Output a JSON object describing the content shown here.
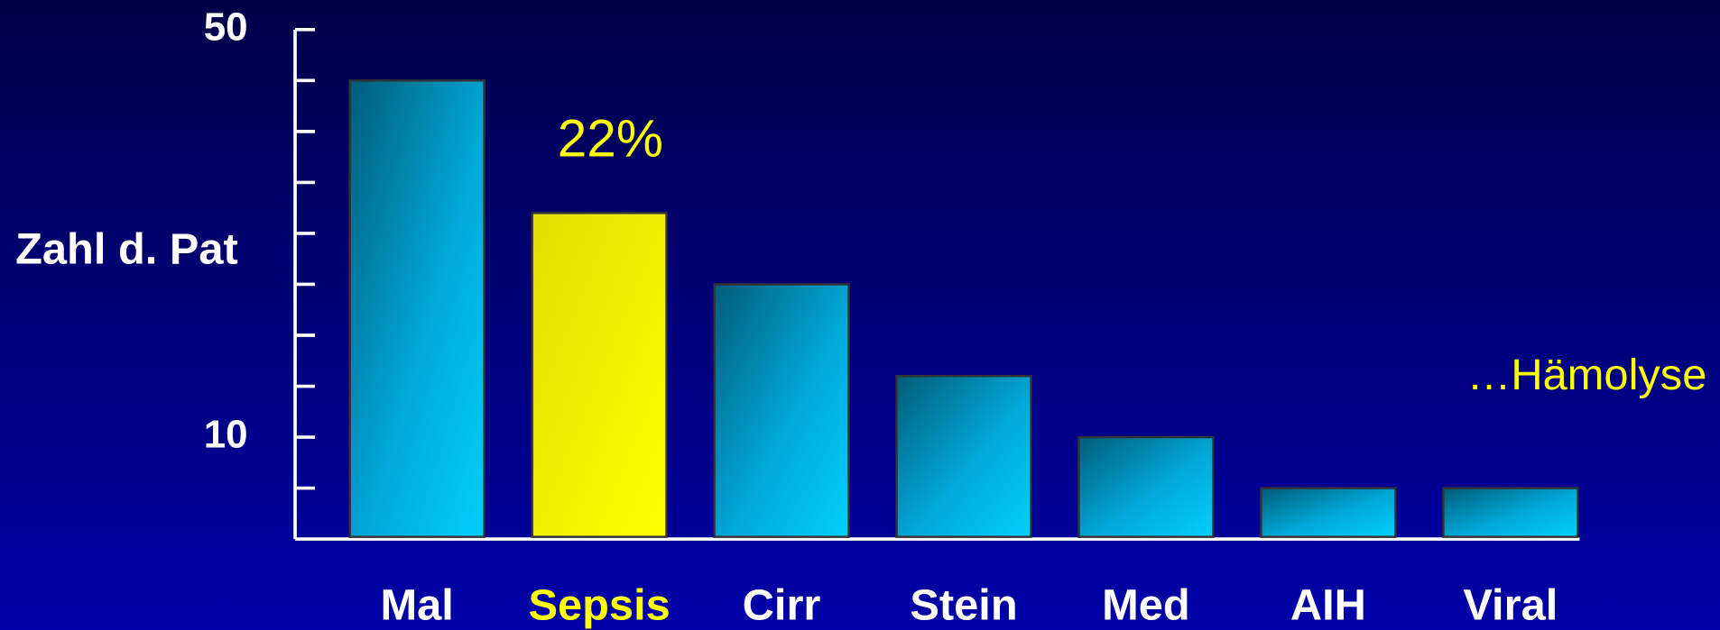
{
  "chart_data": {
    "type": "bar",
    "ylabel": "Zahl d. Pat",
    "categories": [
      "Mal",
      "Sepsis",
      "Cirr",
      "Stein",
      "Med",
      "AIH",
      "Viral"
    ],
    "values": [
      45,
      32,
      25,
      16,
      10,
      5,
      5
    ],
    "colors": [
      "#00bfff",
      "#ffff00",
      "#00bfff",
      "#00bfff",
      "#00bfff",
      "#00bfff",
      "#00bfff"
    ],
    "label_colors": [
      "#ffffff",
      "#ffff00",
      "#ffffff",
      "#ffffff",
      "#ffffff",
      "#ffffff",
      "#ffffff"
    ],
    "ylim": [
      0,
      50
    ],
    "yticks": [
      10,
      50
    ],
    "yminor_ticks": [
      5,
      15,
      20,
      25,
      30,
      35,
      40,
      45
    ],
    "annotations": [
      {
        "text": "22%",
        "category": 1
      },
      {
        "text": "…Hämolyse"
      }
    ]
  }
}
